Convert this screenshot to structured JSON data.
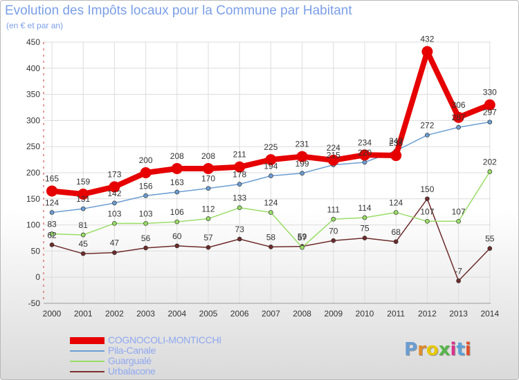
{
  "chart_data": {
    "type": "line",
    "title": "Evolution des Impôts locaux pour la Commune par Habitant",
    "subtitle": "(en € et par an)",
    "xlabel": "",
    "ylabel": "",
    "ylim": [
      -50,
      450
    ],
    "yticks": [
      -50,
      0,
      50,
      100,
      150,
      200,
      250,
      300,
      350,
      400,
      450
    ],
    "categories": [
      "2000",
      "2001",
      "2002",
      "2003",
      "2004",
      "2005",
      "2006",
      "2007",
      "2008",
      "2009",
      "2010",
      "2011",
      "2012",
      "2013",
      "2014"
    ],
    "series": [
      {
        "name": "COGNOCOLI-MONTICCHI",
        "color": "#e60000",
        "values": [
          165,
          159,
          173,
          200,
          208,
          208,
          211,
          225,
          231,
          224,
          234,
          233,
          432,
          306,
          330
        ]
      },
      {
        "name": "Pila-Canale",
        "color": "#6b9dd2",
        "values": [
          124,
          131,
          142,
          156,
          163,
          170,
          178,
          194,
          199,
          215,
          220,
          242,
          272,
          287,
          297
        ]
      },
      {
        "name": "Guargualé",
        "color": "#99dd66",
        "values": [
          83,
          81,
          103,
          103,
          106,
          112,
          133,
          124,
          57,
          111,
          114,
          124,
          107,
          107,
          202
        ]
      },
      {
        "name": "Urbalacone",
        "color": "#6e2a2a",
        "values": [
          62,
          45,
          47,
          56,
          60,
          57,
          73,
          58,
          59,
          70,
          75,
          68,
          150,
          -7,
          55
        ]
      }
    ],
    "legend_position": "bottom-left",
    "grid": true
  },
  "logo": {
    "text": "Proxiti",
    "colors": [
      "#6b9dd2",
      "#e08a2a",
      "#e6c800",
      "#56b64a",
      "#d6338c",
      "#5da1d8",
      "#e0502a"
    ]
  }
}
